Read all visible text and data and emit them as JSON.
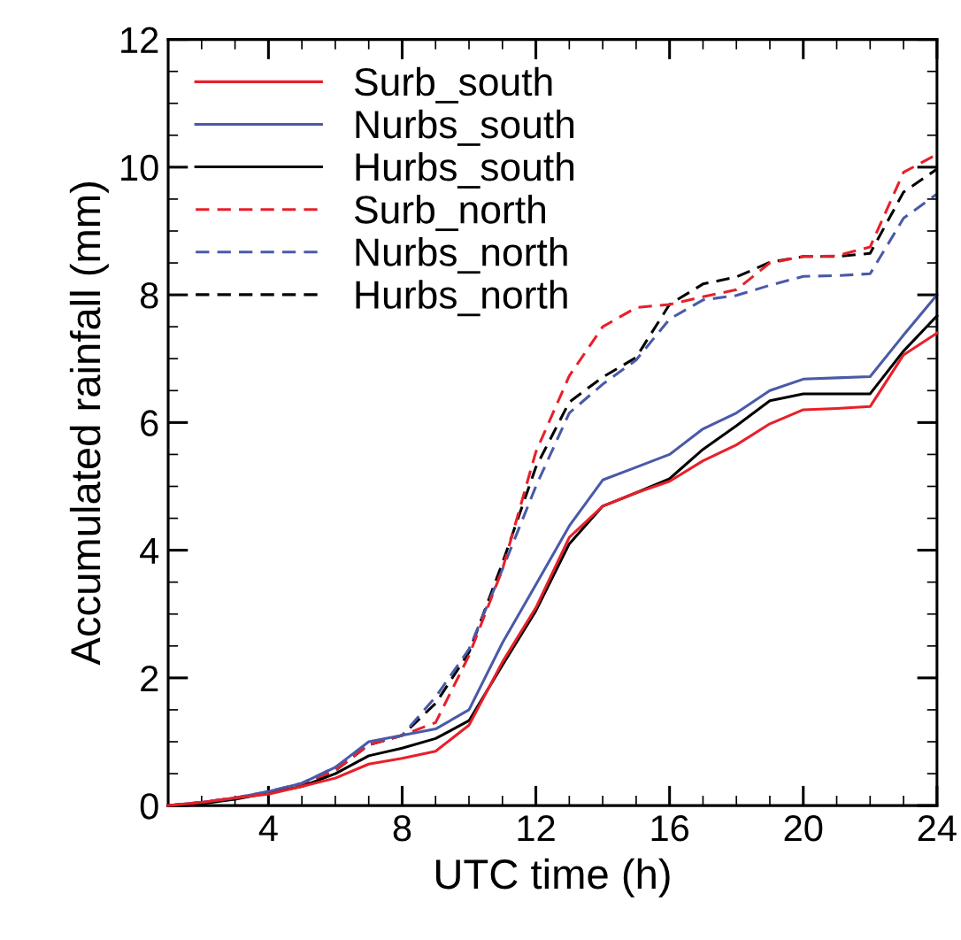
{
  "chart_data": {
    "type": "line",
    "xlabel": "UTC time (h)",
    "ylabel": "Accumulated rainfall (mm)",
    "x": [
      1,
      2,
      3,
      4,
      5,
      6,
      7,
      8,
      9,
      10,
      11,
      12,
      13,
      14,
      15,
      16,
      17,
      18,
      19,
      20,
      21,
      22,
      23,
      24
    ],
    "xlim": [
      1,
      24
    ],
    "xticks": [
      4,
      8,
      12,
      16,
      20,
      24
    ],
    "ylim": [
      0,
      12
    ],
    "yticks": [
      0,
      2,
      4,
      6,
      8,
      10,
      12
    ],
    "grid": false,
    "legend": "top left",
    "marker": "none",
    "series": [
      {
        "name": "Surb_south",
        "color": "#e8202a",
        "line_style": "solid",
        "values": [
          0,
          0.05,
          0.12,
          0.18,
          0.3,
          0.43,
          0.65,
          0.74,
          0.85,
          1.26,
          2.25,
          3.1,
          4.2,
          4.69,
          4.9,
          5.08,
          5.4,
          5.65,
          5.98,
          6.2,
          6.22,
          6.25,
          7.06,
          7.4
        ]
      },
      {
        "name": "Nurbs_south",
        "color": "#4a5aa8",
        "line_style": "solid",
        "values": [
          0,
          0.05,
          0.12,
          0.22,
          0.35,
          0.6,
          1.0,
          1.1,
          1.2,
          1.5,
          2.55,
          3.46,
          4.38,
          5.1,
          5.3,
          5.5,
          5.9,
          6.15,
          6.5,
          6.68,
          6.7,
          6.72,
          7.37,
          8.0
        ]
      },
      {
        "name": "Hurbs_south",
        "color": "#000000",
        "line_style": "solid",
        "values": [
          0,
          0.03,
          0.1,
          0.2,
          0.3,
          0.5,
          0.78,
          0.9,
          1.05,
          1.33,
          2.2,
          3.05,
          4.1,
          4.69,
          4.9,
          5.12,
          5.58,
          5.95,
          6.34,
          6.45,
          6.45,
          6.45,
          7.12,
          7.67
        ]
      },
      {
        "name": "Surb_north",
        "color": "#e8202a",
        "line_style": "dashed",
        "values": [
          0,
          0.05,
          0.12,
          0.2,
          0.33,
          0.55,
          0.95,
          1.1,
          1.3,
          2.35,
          3.7,
          5.54,
          6.73,
          7.5,
          7.8,
          7.85,
          7.97,
          8.08,
          8.5,
          8.6,
          8.61,
          8.75,
          9.92,
          10.2
        ]
      },
      {
        "name": "Nurbs_north",
        "color": "#4a5aa8",
        "line_style": "dashed",
        "values": [
          0,
          0.05,
          0.12,
          0.22,
          0.35,
          0.6,
          0.95,
          1.1,
          1.7,
          2.45,
          3.7,
          5.0,
          6.15,
          6.6,
          6.98,
          7.62,
          7.92,
          7.99,
          8.15,
          8.29,
          8.3,
          8.33,
          9.2,
          9.58
        ]
      },
      {
        "name": "Hurbs_north",
        "color": "#000000",
        "line_style": "dashed",
        "values": [
          0,
          0.04,
          0.11,
          0.2,
          0.32,
          0.55,
          0.95,
          1.1,
          1.6,
          2.4,
          3.8,
          5.3,
          6.32,
          6.71,
          7.02,
          7.85,
          8.17,
          8.28,
          8.51,
          8.6,
          8.6,
          8.65,
          9.61,
          9.97
        ]
      }
    ]
  }
}
